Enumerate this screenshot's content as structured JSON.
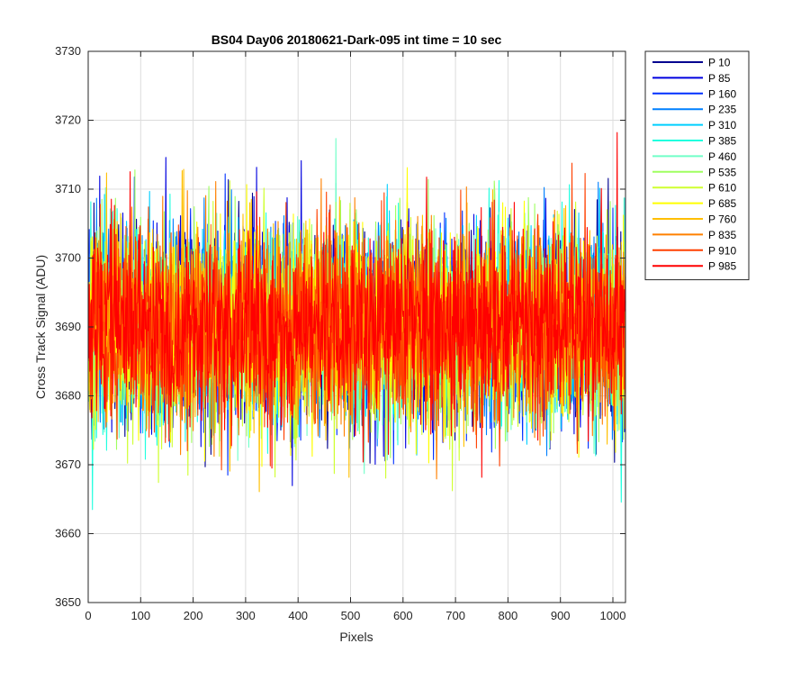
{
  "chart_data": {
    "type": "line",
    "title": "BS04 Day06 20180621-Dark-095 int time = 10 sec",
    "xlabel": "Pixels",
    "ylabel": "Cross Track Signal (ADU)",
    "xlim": [
      0,
      1024
    ],
    "ylim": [
      3650,
      3730
    ],
    "xticks": [
      "0",
      "100",
      "200",
      "300",
      "400",
      "500",
      "600",
      "700",
      "800",
      "900",
      "1000"
    ],
    "yticks": [
      "3650",
      "3660",
      "3670",
      "3680",
      "3690",
      "3700",
      "3710",
      "3720",
      "3730"
    ],
    "grid": true,
    "legend_position": "outside-top-right",
    "noise": {
      "mean": 3690,
      "sigma": 7,
      "n_points": 1024
    },
    "series": [
      {
        "name": "P 10",
        "color": "#00008f"
      },
      {
        "name": "P 85",
        "color": "#0000df"
      },
      {
        "name": "P 160",
        "color": "#0030ff"
      },
      {
        "name": "P 235",
        "color": "#0080ff"
      },
      {
        "name": "P 310",
        "color": "#00cfff"
      },
      {
        "name": "P 385",
        "color": "#20ffdf"
      },
      {
        "name": "P 460",
        "color": "#70ffc8"
      },
      {
        "name": "P 535",
        "color": "#9fff60"
      },
      {
        "name": "P 610",
        "color": "#cfff30"
      },
      {
        "name": "P 685",
        "color": "#ffff00"
      },
      {
        "name": "P 760",
        "color": "#ffbf00"
      },
      {
        "name": "P 835",
        "color": "#ff8000"
      },
      {
        "name": "P 910",
        "color": "#ff4000"
      },
      {
        "name": "P 985",
        "color": "#ff0000"
      }
    ]
  }
}
